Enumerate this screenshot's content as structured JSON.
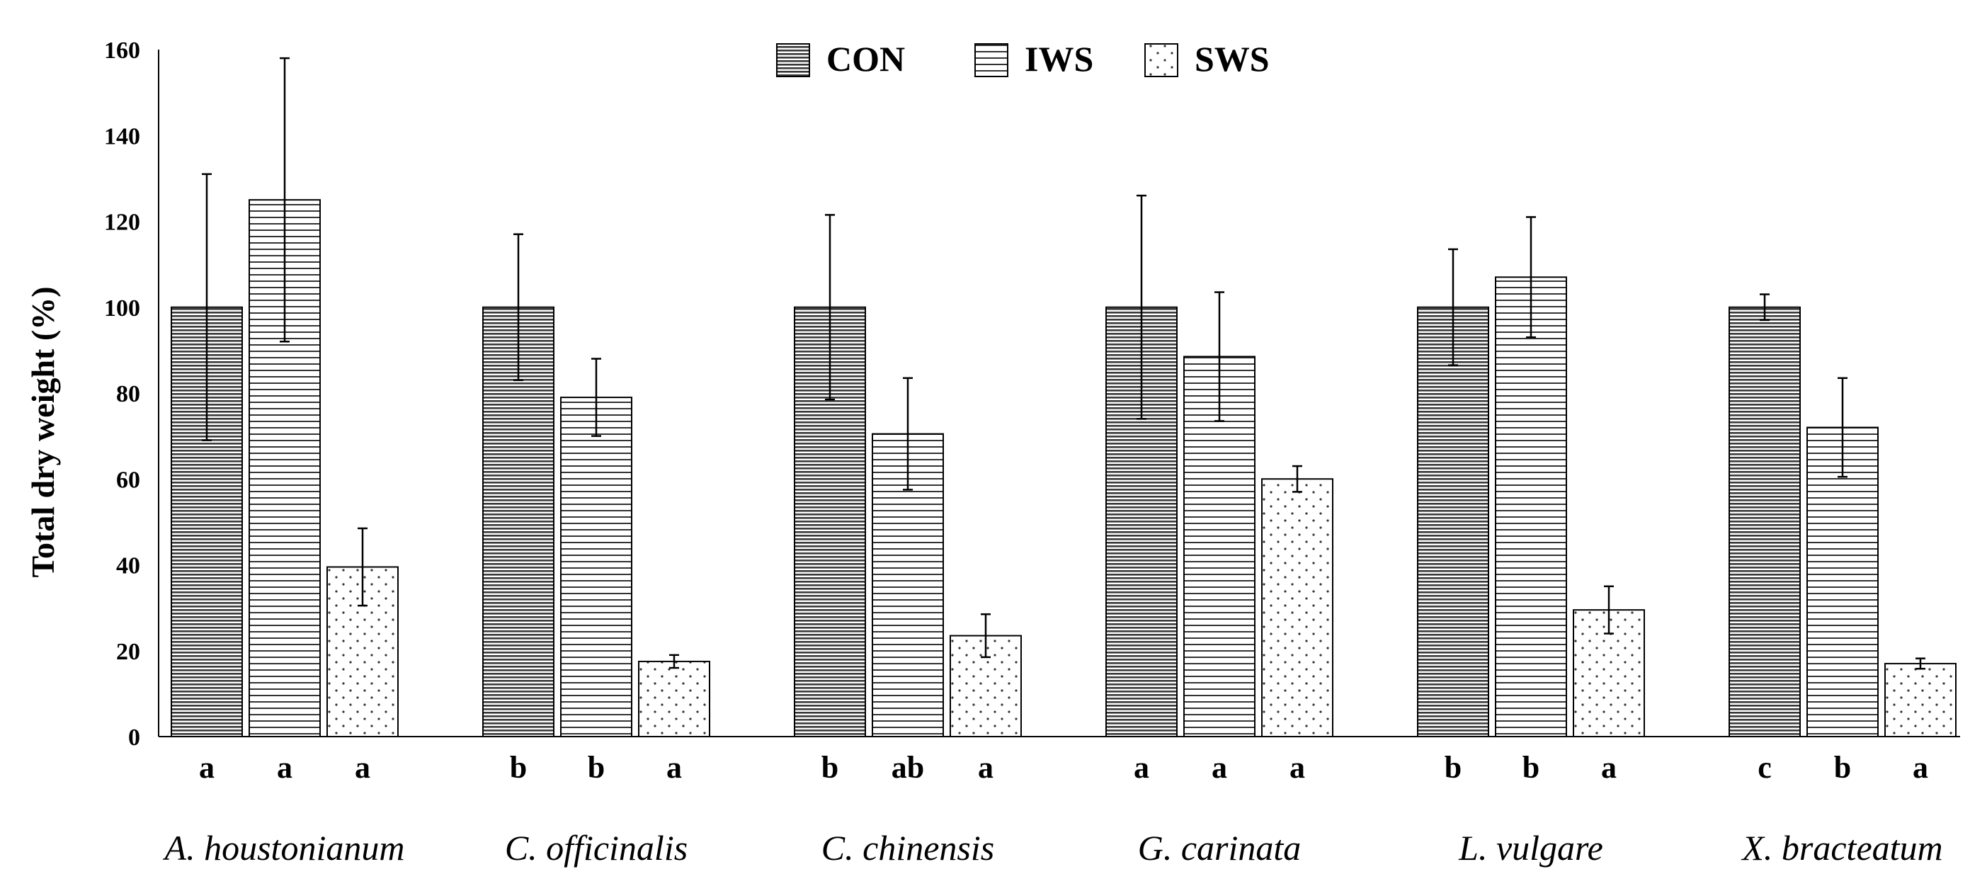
{
  "chart_data": {
    "type": "bar",
    "ylabel": "Total dry weight (%)",
    "xlabel": "",
    "ylim": [
      0,
      160
    ],
    "yticks": [
      0,
      20,
      40,
      60,
      80,
      100,
      120,
      140,
      160
    ],
    "legend_position": "top-center",
    "categories": [
      "A. houstonianum",
      "C. officinalis",
      "C. chinensis",
      "G. carinata",
      "L. vulgare",
      "X. bracteatum"
    ],
    "series": [
      {
        "name": "CON",
        "pattern": "dense-horizontal-lines",
        "values": [
          100,
          100,
          100,
          100,
          100,
          100
        ],
        "errors": [
          31,
          17,
          21.5,
          26,
          13.5,
          3
        ],
        "letters": [
          "a",
          "b",
          "b",
          "a",
          "b",
          "c"
        ]
      },
      {
        "name": "IWS",
        "pattern": "horizontal-lines",
        "values": [
          125,
          79,
          70.5,
          88.5,
          107,
          72
        ],
        "errors": [
          33,
          9,
          13,
          15,
          14,
          11.5
        ],
        "letters": [
          "a",
          "b",
          "ab",
          "a",
          "b",
          "b"
        ]
      },
      {
        "name": "SWS",
        "pattern": "dots",
        "values": [
          39.5,
          17.5,
          23.5,
          60,
          29.5,
          17
        ],
        "errors": [
          9,
          1.5,
          5,
          3,
          5.5,
          1.2
        ],
        "letters": [
          "a",
          "a",
          "a",
          "a",
          "a",
          "a"
        ]
      }
    ]
  }
}
